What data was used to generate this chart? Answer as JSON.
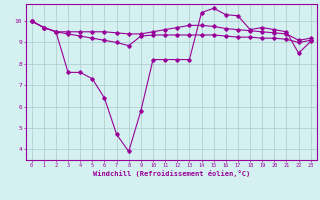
{
  "xlabel": "Windchill (Refroidissement éolien,°C)",
  "background_color": "#d4f0f0",
  "line_color": "#990099",
  "grid_color": "#aacccc",
  "x_ticks": [
    0,
    1,
    2,
    3,
    4,
    5,
    6,
    7,
    8,
    9,
    10,
    11,
    12,
    13,
    14,
    15,
    16,
    17,
    18,
    19,
    20,
    21,
    22,
    23
  ],
  "ylim": [
    3.5,
    10.8
  ],
  "xlim": [
    -0.5,
    23.5
  ],
  "line1_y": [
    10.0,
    9.7,
    9.5,
    9.4,
    9.3,
    9.2,
    9.1,
    9.0,
    8.85,
    9.3,
    9.35,
    9.35,
    9.35,
    9.35,
    9.35,
    9.35,
    9.3,
    9.25,
    9.25,
    9.2,
    9.2,
    9.15,
    9.0,
    9.1
  ],
  "line2_y": [
    10.0,
    9.7,
    9.5,
    9.5,
    9.5,
    9.5,
    9.5,
    9.45,
    9.4,
    9.4,
    9.5,
    9.6,
    9.7,
    9.8,
    9.8,
    9.75,
    9.65,
    9.6,
    9.55,
    9.5,
    9.45,
    9.4,
    9.1,
    9.2
  ],
  "line3_y": [
    10.0,
    9.7,
    9.5,
    7.6,
    7.6,
    7.3,
    6.4,
    4.7,
    3.9,
    5.8,
    8.2,
    8.2,
    8.2,
    8.2,
    10.4,
    10.6,
    10.3,
    10.25,
    9.6,
    9.7,
    9.6,
    9.5,
    8.5,
    9.05
  ],
  "yticks": [
    4,
    5,
    6,
    7,
    8,
    9,
    10
  ]
}
